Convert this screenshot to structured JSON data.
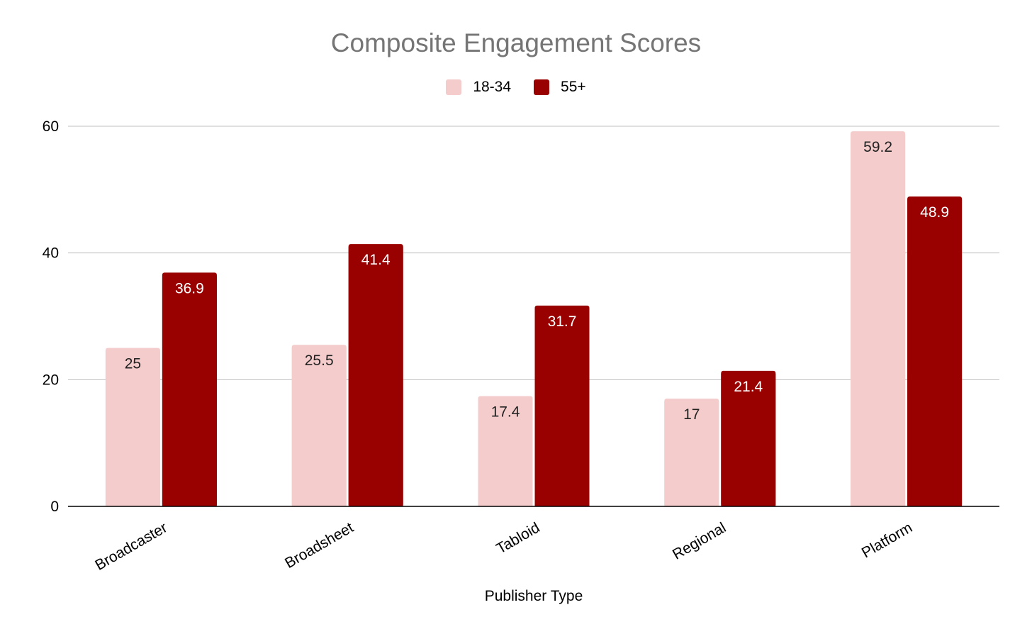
{
  "chart_data": {
    "type": "bar",
    "title": "Composite Engagement Scores",
    "xlabel": "Publisher Type",
    "ylabel": "",
    "ylim": [
      0,
      60
    ],
    "yticks": [
      0,
      20,
      40,
      60
    ],
    "grid": true,
    "legend_position": "top",
    "categories": [
      "Broadcaster",
      "Broadsheet",
      "Tabloid",
      "Regional",
      "Platform"
    ],
    "series": [
      {
        "name": "18-34",
        "color": "#f4cccc",
        "label_color": "#222222",
        "values": [
          25,
          25.5,
          17.4,
          17,
          59.2
        ]
      },
      {
        "name": "55+",
        "color": "#990000",
        "label_color": "#ffffff",
        "values": [
          36.9,
          41.4,
          31.7,
          21.4,
          48.9
        ]
      }
    ]
  }
}
